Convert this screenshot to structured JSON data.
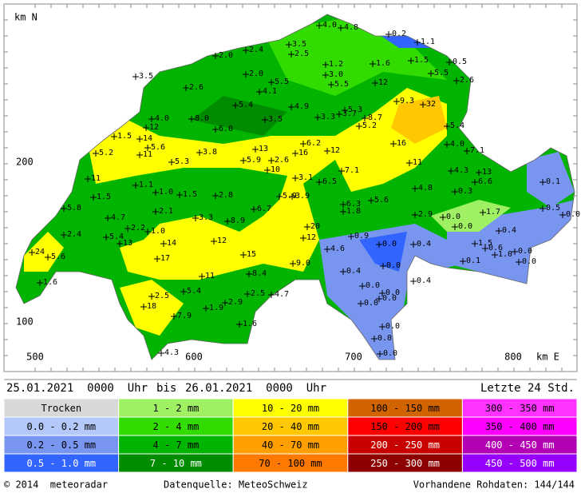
{
  "map": {
    "north_label": "km N",
    "east_label": "km E",
    "y_labels": [
      "200",
      "100"
    ],
    "x_labels": [
      "500",
      "600",
      "700",
      "800"
    ],
    "stations": [
      "4.0",
      "4.8",
      "0.2",
      "1.1",
      "3.5",
      "2.5",
      "2.0",
      "2.4",
      "1.2",
      "1.6",
      "1.5",
      "0.5",
      "3.5",
      "2.0",
      "3.0",
      "5.5",
      "2.6",
      "2.6",
      "5.5",
      "4.1",
      "5.5",
      "12",
      "9.3",
      "32",
      "5.4",
      "4.9",
      "5.3",
      "8.7",
      "3.3",
      "3.7",
      "3.5",
      "4.0",
      "8.0",
      "12",
      "5.2",
      "6.0",
      "5.4",
      "1.5",
      "14",
      "5.6",
      "16",
      "4.0",
      "7.1",
      "5.2",
      "13",
      "6.2",
      "16",
      "12",
      "3.8",
      "11",
      "5.3",
      "5.9",
      "2.6",
      "11",
      "10",
      "7.1",
      "4.3",
      "13",
      "0.1",
      "11",
      "3.1",
      "6.5",
      "6.6",
      "1.1",
      "1.0",
      "1.5",
      "2.8",
      "5.9",
      "3.9",
      "4.8",
      "0.3",
      "1.5",
      "5.6",
      "6.3",
      "0.5",
      "0.0",
      "5.8",
      "2.1",
      "6.7",
      "1.8",
      "2.9",
      "1.7",
      "0.0",
      "4.7",
      "3.3",
      "8.9",
      "0.0",
      "2.2",
      "1.0",
      "20",
      "0.4",
      "2.4",
      "5.4",
      "0.9",
      "12",
      "14",
      "12",
      "1.5",
      "0.6",
      "0.0",
      "0.4",
      "1.0",
      "0.0",
      "13",
      "24",
      "5.6",
      "4.6",
      "15",
      "17",
      "0.1",
      "0.0",
      "9.0",
      "0.4",
      "0.0",
      "8.4",
      "11",
      "0.4",
      "0.0",
      "1.6",
      "0.0",
      "2.5",
      "5.4",
      "2.5",
      "4.7",
      "2.9",
      "0.0",
      "0.0",
      "18",
      "1.9",
      "7.9",
      "1.6",
      "0.0",
      "0.0",
      "4.3",
      "0.0"
    ]
  },
  "header": {
    "from": "25.01.2021  0000  Uhr",
    "bis": "bis",
    "to": "26.01.2021  0000  Uhr",
    "window": "Letzte 24 Std."
  },
  "legend": {
    "columns": [
      [
        {
          "label": "Trocken",
          "color": "#d8d8d8"
        },
        {
          "label": "0.0 - 0.2 mm",
          "color": "#b4c8fa"
        },
        {
          "label": "0.2 - 0.5 mm",
          "color": "#7896f0"
        },
        {
          "label": "0.5 - 1.0 mm",
          "color": "#3264ff"
        }
      ],
      [
        {
          "label": "1 - 2 mm",
          "color": "#a0f064"
        },
        {
          "label": "2 - 4 mm",
          "color": "#32dc00"
        },
        {
          "label": "4 - 7 mm",
          "color": "#00b400"
        },
        {
          "label": "7 - 10 mm",
          "color": "#008c00"
        }
      ],
      [
        {
          "label": "10 - 20 mm",
          "color": "#ffff00"
        },
        {
          "label": "20 - 40 mm",
          "color": "#ffc800"
        },
        {
          "label": "40 - 70 mm",
          "color": "#ffa000"
        },
        {
          "label": "70 - 100 mm",
          "color": "#ff7800"
        }
      ],
      [
        {
          "label": "100 - 150 mm",
          "color": "#d26400"
        },
        {
          "label": "150 - 200 mm",
          "color": "#ff0000"
        },
        {
          "label": "200 - 250 mm",
          "color": "#c80000"
        },
        {
          "label": "250 - 300 mm",
          "color": "#8c0000"
        }
      ],
      [
        {
          "label": "300 - 350 mm",
          "color": "#ff32ff"
        },
        {
          "label": "350 - 400 mm",
          "color": "#ff00ff"
        },
        {
          "label": "400 - 450 mm",
          "color": "#b400b4"
        },
        {
          "label": "450 - 500 mm",
          "color": "#9600ff"
        }
      ]
    ]
  },
  "footer": {
    "copyright": "© 2014  meteoradar",
    "source": "Datenquelle: MeteoSchweiz",
    "available": "Vorhandene Rohdaten: 144/144"
  }
}
